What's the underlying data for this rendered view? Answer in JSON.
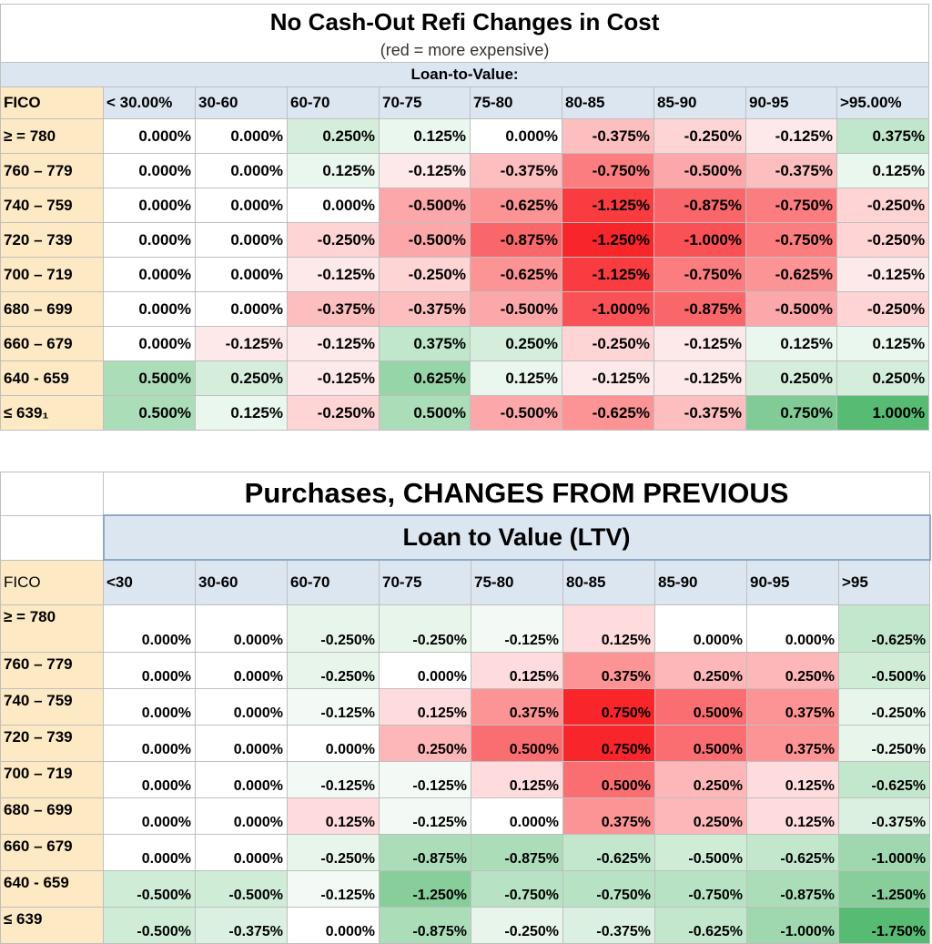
{
  "refi": {
    "title": "No Cash-Out Refi Changes in Cost",
    "subtitle": "(red = more expensive)",
    "ltv_label": "Loan-to-Value:",
    "fico_label": "FICO",
    "columns": [
      "< 30.00%",
      "30-60",
      "60-70",
      "70-75",
      "75-80",
      "80-85",
      "85-90",
      "90-95",
      ">95.00%"
    ],
    "rows": [
      {
        "label": "≥ = 780",
        "values": [
          "0.000%",
          "0.000%",
          "0.250%",
          "0.125%",
          "0.000%",
          "-0.375%",
          "-0.250%",
          "-0.125%",
          "0.375%"
        ]
      },
      {
        "label": "760 – 779",
        "values": [
          "0.000%",
          "0.000%",
          "0.125%",
          "-0.125%",
          "-0.375%",
          "-0.750%",
          "-0.500%",
          "-0.375%",
          "0.125%"
        ]
      },
      {
        "label": "740 – 759",
        "values": [
          "0.000%",
          "0.000%",
          "0.000%",
          "-0.500%",
          "-0.625%",
          "-1.125%",
          "-0.875%",
          "-0.750%",
          "-0.250%"
        ]
      },
      {
        "label": "720 – 739",
        "values": [
          "0.000%",
          "0.000%",
          "-0.250%",
          "-0.500%",
          "-0.875%",
          "-1.250%",
          "-1.000%",
          "-0.750%",
          "-0.250%"
        ]
      },
      {
        "label": "700 – 719",
        "values": [
          "0.000%",
          "0.000%",
          "-0.125%",
          "-0.250%",
          "-0.625%",
          "-1.125%",
          "-0.750%",
          "-0.625%",
          "-0.125%"
        ]
      },
      {
        "label": "680 – 699",
        "values": [
          "0.000%",
          "0.000%",
          "-0.375%",
          "-0.375%",
          "-0.500%",
          "-1.000%",
          "-0.875%",
          "-0.500%",
          "-0.250%"
        ]
      },
      {
        "label": "660 – 679",
        "values": [
          "0.000%",
          "-0.125%",
          "-0.125%",
          "0.375%",
          "0.250%",
          "-0.250%",
          "-0.125%",
          "0.125%",
          "0.125%"
        ]
      },
      {
        "label": "640 - 659",
        "values": [
          "0.500%",
          "0.250%",
          "-0.125%",
          "0.625%",
          "0.125%",
          "-0.125%",
          "-0.125%",
          "0.250%",
          "0.250%"
        ]
      },
      {
        "label": "≤ 639₁",
        "values": [
          "0.500%",
          "0.125%",
          "-0.250%",
          "0.500%",
          "-0.500%",
          "-0.625%",
          "-0.375%",
          "0.750%",
          "1.000%"
        ]
      }
    ]
  },
  "purchase": {
    "title": "Purchases, CHANGES FROM PREVIOUS",
    "ltv_label": "Loan to Value (LTV)",
    "fico_label": "FICO",
    "columns": [
      "<30",
      "30-60",
      "60-70",
      "70-75",
      "75-80",
      "80-85",
      "85-90",
      "90-95",
      ">95"
    ],
    "rows": [
      {
        "label": "≥ = 780",
        "values": [
          "0.000%",
          "0.000%",
          "-0.250%",
          "-0.250%",
          "-0.125%",
          "0.125%",
          "0.000%",
          "0.000%",
          "-0.625%"
        ]
      },
      {
        "label": "760 – 779",
        "values": [
          "0.000%",
          "0.000%",
          "-0.250%",
          "0.000%",
          "0.125%",
          "0.375%",
          "0.250%",
          "0.250%",
          "-0.500%"
        ]
      },
      {
        "label": "740 – 759",
        "values": [
          "0.000%",
          "0.000%",
          "-0.125%",
          "0.125%",
          "0.375%",
          "0.750%",
          "0.500%",
          "0.375%",
          "-0.250%"
        ]
      },
      {
        "label": "720 – 739",
        "values": [
          "0.000%",
          "0.000%",
          "0.000%",
          "0.250%",
          "0.500%",
          "0.750%",
          "0.500%",
          "0.375%",
          "-0.250%"
        ]
      },
      {
        "label": "700 – 719",
        "values": [
          "0.000%",
          "0.000%",
          "-0.125%",
          "-0.125%",
          "0.125%",
          "0.500%",
          "0.250%",
          "0.125%",
          "-0.625%"
        ]
      },
      {
        "label": "680 – 699",
        "values": [
          "0.000%",
          "0.000%",
          "0.125%",
          "-0.125%",
          "0.000%",
          "0.375%",
          "0.250%",
          "0.125%",
          "-0.375%"
        ]
      },
      {
        "label": "660 – 679",
        "values": [
          "0.000%",
          "0.000%",
          "-0.250%",
          "-0.875%",
          "-0.875%",
          "-0.625%",
          "-0.500%",
          "-0.625%",
          "-1.000%"
        ]
      },
      {
        "label": "640 - 659",
        "values": [
          "-0.500%",
          "-0.500%",
          "-0.125%",
          "-1.250%",
          "-0.750%",
          "-0.750%",
          "-0.750%",
          "-0.875%",
          "-1.250%"
        ]
      },
      {
        "label": "≤ 639",
        "values": [
          "-0.500%",
          "-0.375%",
          "0.000%",
          "-0.875%",
          "-0.250%",
          "-0.375%",
          "-0.625%",
          "-1.000%",
          "-1.750%"
        ]
      }
    ]
  },
  "colors": {
    "green_strong": "#57bb73",
    "red_strong": "#f8262b",
    "neutral": "#ffffff",
    "header_blue": "#dce6f1",
    "header_tan": "#fde9c4"
  }
}
